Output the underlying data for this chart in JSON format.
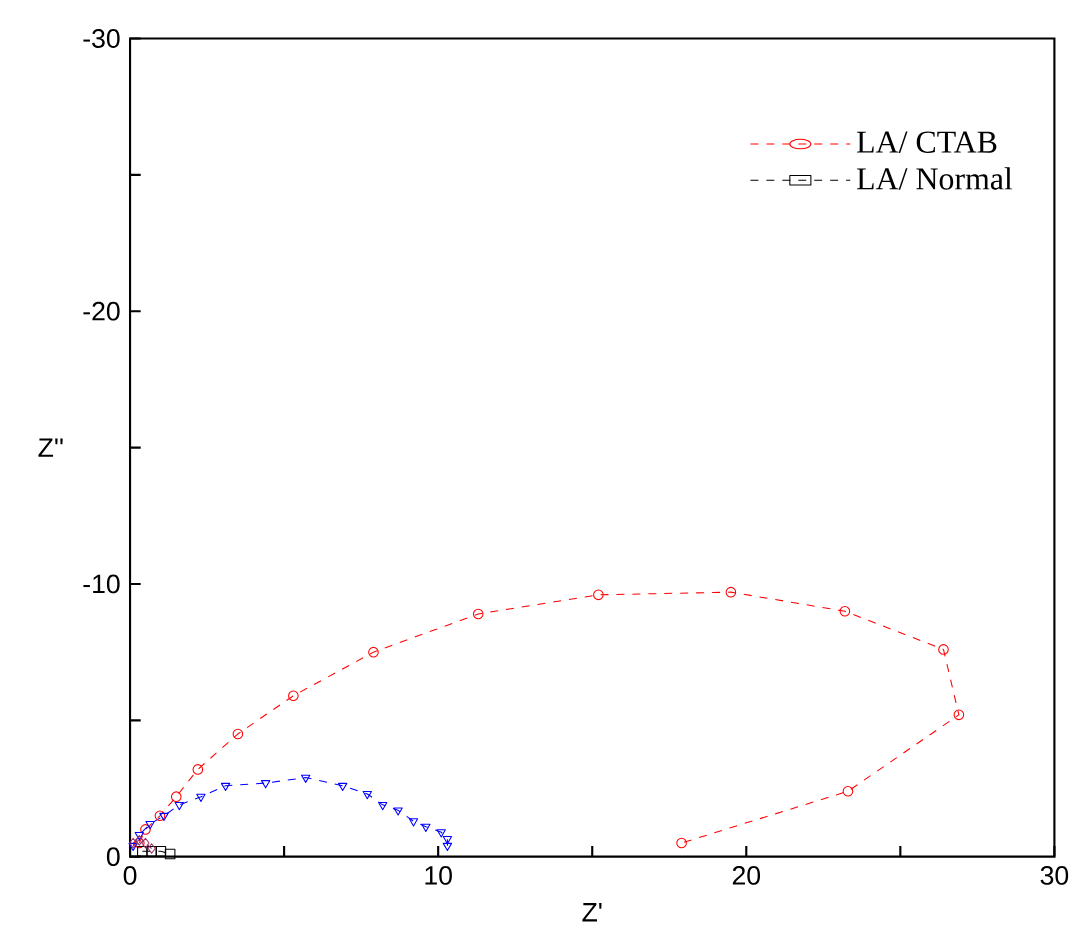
{
  "chart_data": {
    "type": "line",
    "xlabel": "Z'",
    "ylabel": "Z''",
    "xlim": [
      0,
      30
    ],
    "ylim": [
      0,
      -30
    ],
    "xticks": [
      0,
      {
        "value": 5,
        "label": null
      },
      10,
      {
        "value": 15,
        "label": null
      },
      20,
      {
        "value": 25,
        "label": null
      },
      30
    ],
    "yticks": [
      0,
      {
        "value": -5,
        "label": null
      },
      -10,
      {
        "value": -15,
        "label": null
      },
      -20,
      {
        "value": -25,
        "label": null
      },
      -30
    ],
    "legend": "top right",
    "line_style": "dashed",
    "grid": false,
    "series": [
      {
        "name": "LA/ CTAB",
        "color": "#ff0000",
        "marker": "circle",
        "x": [
          0.3,
          0.5,
          0.97,
          1.5,
          2.2,
          3.5,
          5.3,
          7.9,
          11.3,
          15.2,
          19.5,
          23.2,
          26.4,
          26.9,
          23.3,
          17.9
        ],
        "values": [
          -0.5,
          -1.0,
          -1.5,
          -2.2,
          -3.2,
          -4.5,
          -5.9,
          -7.5,
          -8.9,
          -9.6,
          -9.7,
          -9.0,
          -7.6,
          -5.2,
          -2.4,
          -0.5
        ]
      },
      {
        "color": "#0000ff",
        "marker": "triangle",
        "x": [
          0.1,
          0.3,
          0.65,
          1.1,
          1.6,
          2.3,
          3.1,
          4.4,
          5.7,
          6.9,
          7.7,
          8.2,
          8.7,
          9.2,
          9.6,
          10.1,
          10.3,
          10.3
        ],
        "values": [
          -0.4,
          -0.8,
          -1.2,
          -1.5,
          -1.9,
          -2.2,
          -2.6,
          -2.7,
          -2.9,
          -2.6,
          -2.3,
          -1.9,
          -1.7,
          -1.3,
          -1.1,
          -0.9,
          -0.65,
          -0.4
        ]
      },
      {
        "name": "LA/ Normal",
        "color": "#000000",
        "marker": "square",
        "x": [
          0.4,
          0.7,
          1.0,
          1.3
        ],
        "values": [
          -0.2,
          -0.2,
          -0.2,
          -0.1
        ]
      },
      {
        "color": "#993366",
        "marker": "diamond",
        "x": [
          0.1,
          0.3,
          0.5,
          0.7
        ],
        "values": [
          -0.5,
          -0.6,
          -0.5,
          -0.3
        ]
      }
    ]
  }
}
